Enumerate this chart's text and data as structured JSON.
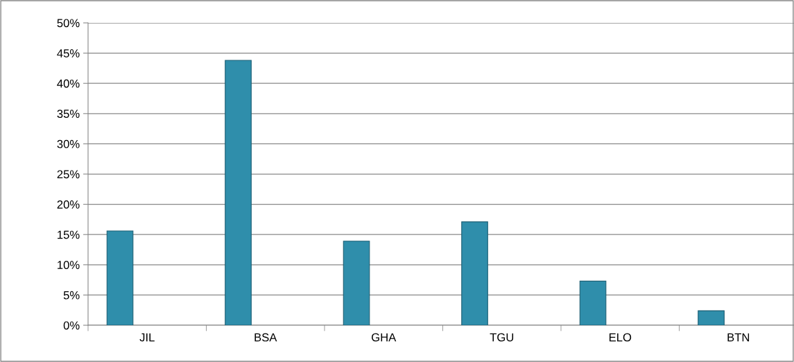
{
  "chart_data": {
    "type": "bar",
    "categories": [
      "JIL",
      "BSA",
      "GHA",
      "TGU",
      "ELO",
      "BTN"
    ],
    "values": [
      0.156,
      0.438,
      0.139,
      0.171,
      0.073,
      0.024
    ],
    "color": "#2f8eab",
    "ylim": [
      0,
      0.5
    ],
    "yticks": [
      {
        "value": 0,
        "label": "0%"
      },
      {
        "value": 0.05,
        "label": "5%"
      },
      {
        "value": 0.1,
        "label": "10%"
      },
      {
        "value": 0.15,
        "label": "15%"
      },
      {
        "value": 0.2,
        "label": "20%"
      },
      {
        "value": 0.25,
        "label": "25%"
      },
      {
        "value": 0.3,
        "label": "30%"
      },
      {
        "value": 0.35,
        "label": "35%"
      },
      {
        "value": 0.4,
        "label": "40%"
      },
      {
        "value": 0.45,
        "label": "45%"
      },
      {
        "value": 0.5,
        "label": "50%"
      }
    ],
    "grid": "y"
  }
}
